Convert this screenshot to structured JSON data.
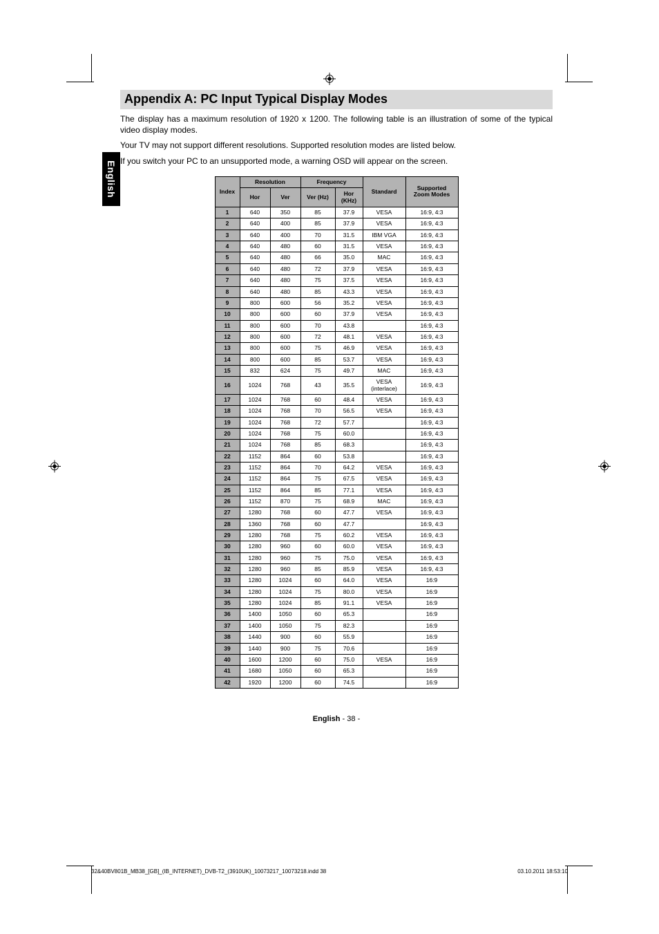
{
  "side_tab": "English",
  "heading": "Appendix A: PC Input Typical Display Modes",
  "intro": {
    "p1": "The display has a maximum resolution of 1920 x 1200. The following table is an illustration of some of the typical video display modes.",
    "p2": "Your TV may not support different resolutions. Supported resolution modes are listed below.",
    "p3": "If you switch your PC to an unsupported mode, a warning OSD will appear on the screen."
  },
  "table": {
    "headers": {
      "index": "Index",
      "resolution": "Resolution",
      "frequency": "Frequency",
      "hor": "Hor",
      "ver": "Ver",
      "ver_hz": "Ver (Hz)",
      "hor_khz_line1": "Hor",
      "hor_khz_line2": "(KHz)",
      "standard": "Standard",
      "supported_line1": "Supported",
      "supported_line2": "Zoom Modes"
    },
    "rows": [
      {
        "i": "1",
        "h": "640",
        "v": "350",
        "vhz": "85",
        "hkhz": "37.9",
        "std": "VESA",
        "zoom": "16:9, 4:3"
      },
      {
        "i": "2",
        "h": "640",
        "v": "400",
        "vhz": "85",
        "hkhz": "37.9",
        "std": "VESA",
        "zoom": "16:9, 4:3"
      },
      {
        "i": "3",
        "h": "640",
        "v": "400",
        "vhz": "70",
        "hkhz": "31.5",
        "std": "IBM VGA",
        "zoom": "16:9, 4:3"
      },
      {
        "i": "4",
        "h": "640",
        "v": "480",
        "vhz": "60",
        "hkhz": "31.5",
        "std": "VESA",
        "zoom": "16:9, 4:3"
      },
      {
        "i": "5",
        "h": "640",
        "v": "480",
        "vhz": "66",
        "hkhz": "35.0",
        "std": "MAC",
        "zoom": "16:9, 4:3"
      },
      {
        "i": "6",
        "h": "640",
        "v": "480",
        "vhz": "72",
        "hkhz": "37.9",
        "std": "VESA",
        "zoom": "16:9, 4:3"
      },
      {
        "i": "7",
        "h": "640",
        "v": "480",
        "vhz": "75",
        "hkhz": "37.5",
        "std": "VESA",
        "zoom": "16:9, 4:3"
      },
      {
        "i": "8",
        "h": "640",
        "v": "480",
        "vhz": "85",
        "hkhz": "43.3",
        "std": "VESA",
        "zoom": "16:9, 4:3"
      },
      {
        "i": "9",
        "h": "800",
        "v": "600",
        "vhz": "56",
        "hkhz": "35.2",
        "std": "VESA",
        "zoom": "16:9, 4:3"
      },
      {
        "i": "10",
        "h": "800",
        "v": "600",
        "vhz": "60",
        "hkhz": "37.9",
        "std": "VESA",
        "zoom": "16:9, 4:3"
      },
      {
        "i": "11",
        "h": "800",
        "v": "600",
        "vhz": "70",
        "hkhz": "43.8",
        "std": "",
        "zoom": "16:9, 4:3"
      },
      {
        "i": "12",
        "h": "800",
        "v": "600",
        "vhz": "72",
        "hkhz": "48.1",
        "std": "VESA",
        "zoom": "16:9, 4:3"
      },
      {
        "i": "13",
        "h": "800",
        "v": "600",
        "vhz": "75",
        "hkhz": "46.9",
        "std": "VESA",
        "zoom": "16:9, 4:3"
      },
      {
        "i": "14",
        "h": "800",
        "v": "600",
        "vhz": "85",
        "hkhz": "53.7",
        "std": "VESA",
        "zoom": "16:9, 4:3"
      },
      {
        "i": "15",
        "h": "832",
        "v": "624",
        "vhz": "75",
        "hkhz": "49.7",
        "std": "MAC",
        "zoom": "16:9, 4:3"
      },
      {
        "i": "16",
        "h": "1024",
        "v": "768",
        "vhz": "43",
        "hkhz": "35.5",
        "std": "VESA (interlace)",
        "zoom": "16:9, 4:3"
      },
      {
        "i": "17",
        "h": "1024",
        "v": "768",
        "vhz": "60",
        "hkhz": "48.4",
        "std": "VESA",
        "zoom": "16:9, 4:3"
      },
      {
        "i": "18",
        "h": "1024",
        "v": "768",
        "vhz": "70",
        "hkhz": "56.5",
        "std": "VESA",
        "zoom": "16:9, 4:3"
      },
      {
        "i": "19",
        "h": "1024",
        "v": "768",
        "vhz": "72",
        "hkhz": "57.7",
        "std": "",
        "zoom": "16:9, 4:3"
      },
      {
        "i": "20",
        "h": "1024",
        "v": "768",
        "vhz": "75",
        "hkhz": "60.0",
        "std": "",
        "zoom": "16:9, 4:3"
      },
      {
        "i": "21",
        "h": "1024",
        "v": "768",
        "vhz": "85",
        "hkhz": "68.3",
        "std": "",
        "zoom": "16:9, 4:3"
      },
      {
        "i": "22",
        "h": "1152",
        "v": "864",
        "vhz": "60",
        "hkhz": "53.8",
        "std": "",
        "zoom": "16:9, 4:3"
      },
      {
        "i": "23",
        "h": "1152",
        "v": "864",
        "vhz": "70",
        "hkhz": "64.2",
        "std": "VESA",
        "zoom": "16:9, 4:3"
      },
      {
        "i": "24",
        "h": "1152",
        "v": "864",
        "vhz": "75",
        "hkhz": "67.5",
        "std": "VESA",
        "zoom": "16:9, 4:3"
      },
      {
        "i": "25",
        "h": "1152",
        "v": "864",
        "vhz": "85",
        "hkhz": "77.1",
        "std": "VESA",
        "zoom": "16:9, 4:3"
      },
      {
        "i": "26",
        "h": "1152",
        "v": "870",
        "vhz": "75",
        "hkhz": "68.9",
        "std": "MAC",
        "zoom": "16:9, 4:3"
      },
      {
        "i": "27",
        "h": "1280",
        "v": "768",
        "vhz": "60",
        "hkhz": "47.7",
        "std": "VESA",
        "zoom": "16:9, 4:3"
      },
      {
        "i": "28",
        "h": "1360",
        "v": "768",
        "vhz": "60",
        "hkhz": "47.7",
        "std": "",
        "zoom": "16:9, 4:3"
      },
      {
        "i": "29",
        "h": "1280",
        "v": "768",
        "vhz": "75",
        "hkhz": "60.2",
        "std": "VESA",
        "zoom": "16:9, 4:3"
      },
      {
        "i": "30",
        "h": "1280",
        "v": "960",
        "vhz": "60",
        "hkhz": "60.0",
        "std": "VESA",
        "zoom": "16:9, 4:3"
      },
      {
        "i": "31",
        "h": "1280",
        "v": "960",
        "vhz": "75",
        "hkhz": "75.0",
        "std": "VESA",
        "zoom": "16:9, 4:3"
      },
      {
        "i": "32",
        "h": "1280",
        "v": "960",
        "vhz": "85",
        "hkhz": "85.9",
        "std": "VESA",
        "zoom": "16:9, 4:3"
      },
      {
        "i": "33",
        "h": "1280",
        "v": "1024",
        "vhz": "60",
        "hkhz": "64.0",
        "std": "VESA",
        "zoom": "16:9"
      },
      {
        "i": "34",
        "h": "1280",
        "v": "1024",
        "vhz": "75",
        "hkhz": "80.0",
        "std": "VESA",
        "zoom": "16:9"
      },
      {
        "i": "35",
        "h": "1280",
        "v": "1024",
        "vhz": "85",
        "hkhz": "91.1",
        "std": "VESA",
        "zoom": "16:9"
      },
      {
        "i": "36",
        "h": "1400",
        "v": "1050",
        "vhz": "60",
        "hkhz": "65.3",
        "std": "",
        "zoom": "16:9"
      },
      {
        "i": "37",
        "h": "1400",
        "v": "1050",
        "vhz": "75",
        "hkhz": "82.3",
        "std": "",
        "zoom": "16:9"
      },
      {
        "i": "38",
        "h": "1440",
        "v": "900",
        "vhz": "60",
        "hkhz": "55.9",
        "std": "",
        "zoom": "16:9"
      },
      {
        "i": "39",
        "h": "1440",
        "v": "900",
        "vhz": "75",
        "hkhz": "70.6",
        "std": "",
        "zoom": "16:9"
      },
      {
        "i": "40",
        "h": "1600",
        "v": "1200",
        "vhz": "60",
        "hkhz": "75.0",
        "std": "VESA",
        "zoom": "16:9"
      },
      {
        "i": "41",
        "h": "1680",
        "v": "1050",
        "vhz": "60",
        "hkhz": "65.3",
        "std": "",
        "zoom": "16:9"
      },
      {
        "i": "42",
        "h": "1920",
        "v": "1200",
        "vhz": "60",
        "hkhz": "74.5",
        "std": "",
        "zoom": "16:9"
      }
    ]
  },
  "footer": {
    "lang": "English",
    "sep": "  - ",
    "page": "38 -"
  },
  "printline": {
    "left": "32&40BV801B_MB38_[GB]_(IB_INTERNET)_DVB-T2_(3910UK)_10073217_10073218.indd   38",
    "right": "03.10.2011   18:53:10"
  },
  "colors": {
    "heading_bg": "#d9d9d9",
    "table_header_bg": "#b3b3b3",
    "text": "#000000",
    "page_bg": "#ffffff"
  }
}
